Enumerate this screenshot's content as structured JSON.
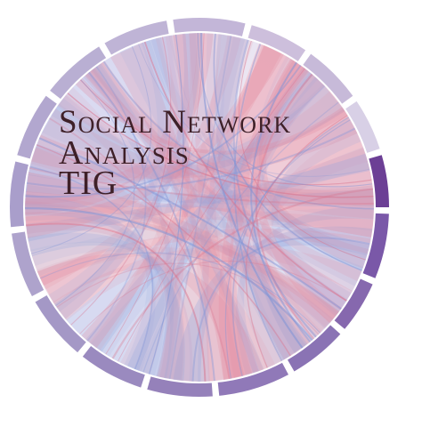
{
  "logo": {
    "title_line_1": "Social Network",
    "title_line_2": "Analysis",
    "title_line_3": "TIG"
  },
  "colors": {
    "ring_light": "#c9bfdc",
    "ring_mid": "#a594c6",
    "ring_dark": "#5a3a8a",
    "ribbon_pink": "#e48a9e",
    "ribbon_blue": "#8fa2dc",
    "background": "#ffffff",
    "text": "#3e2028"
  }
}
